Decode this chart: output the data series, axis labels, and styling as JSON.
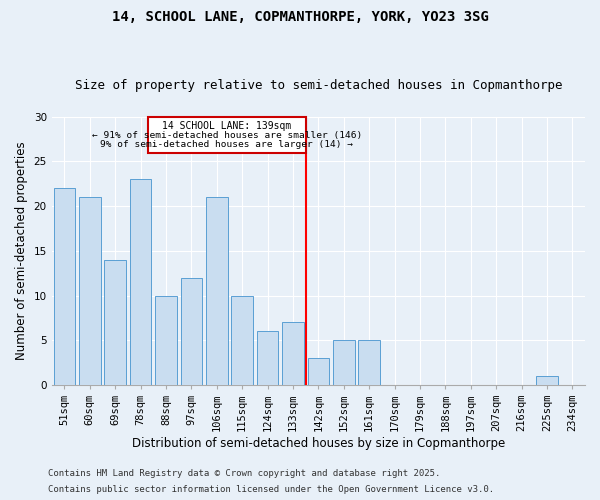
{
  "title1": "14, SCHOOL LANE, COPMANTHORPE, YORK, YO23 3SG",
  "title2": "Size of property relative to semi-detached houses in Copmanthorpe",
  "xlabel": "Distribution of semi-detached houses by size in Copmanthorpe",
  "ylabel": "Number of semi-detached properties",
  "categories": [
    "51sqm",
    "60sqm",
    "69sqm",
    "78sqm",
    "88sqm",
    "97sqm",
    "106sqm",
    "115sqm",
    "124sqm",
    "133sqm",
    "142sqm",
    "152sqm",
    "161sqm",
    "170sqm",
    "179sqm",
    "188sqm",
    "197sqm",
    "207sqm",
    "216sqm",
    "225sqm",
    "234sqm"
  ],
  "values": [
    22,
    21,
    14,
    23,
    10,
    12,
    21,
    10,
    6,
    7,
    3,
    5,
    5,
    0,
    0,
    0,
    0,
    0,
    0,
    1,
    0
  ],
  "bar_color": "#c9ddf0",
  "bar_edge_color": "#5a9fd4",
  "ref_line_label": "14 SCHOOL LANE: 139sqm",
  "annotation_line1": "← 91% of semi-detached houses are smaller (146)",
  "annotation_line2": "9% of semi-detached houses are larger (14) →",
  "annotation_box_color": "#cc0000",
  "ylim": [
    0,
    30
  ],
  "yticks": [
    0,
    5,
    10,
    15,
    20,
    25,
    30
  ],
  "footnote1": "Contains HM Land Registry data © Crown copyright and database right 2025.",
  "footnote2": "Contains public sector information licensed under the Open Government Licence v3.0.",
  "bg_color": "#e8f0f8",
  "title1_fontsize": 10,
  "title2_fontsize": 9,
  "axis_label_fontsize": 8.5,
  "tick_fontsize": 7.5,
  "footnote_fontsize": 6.5
}
